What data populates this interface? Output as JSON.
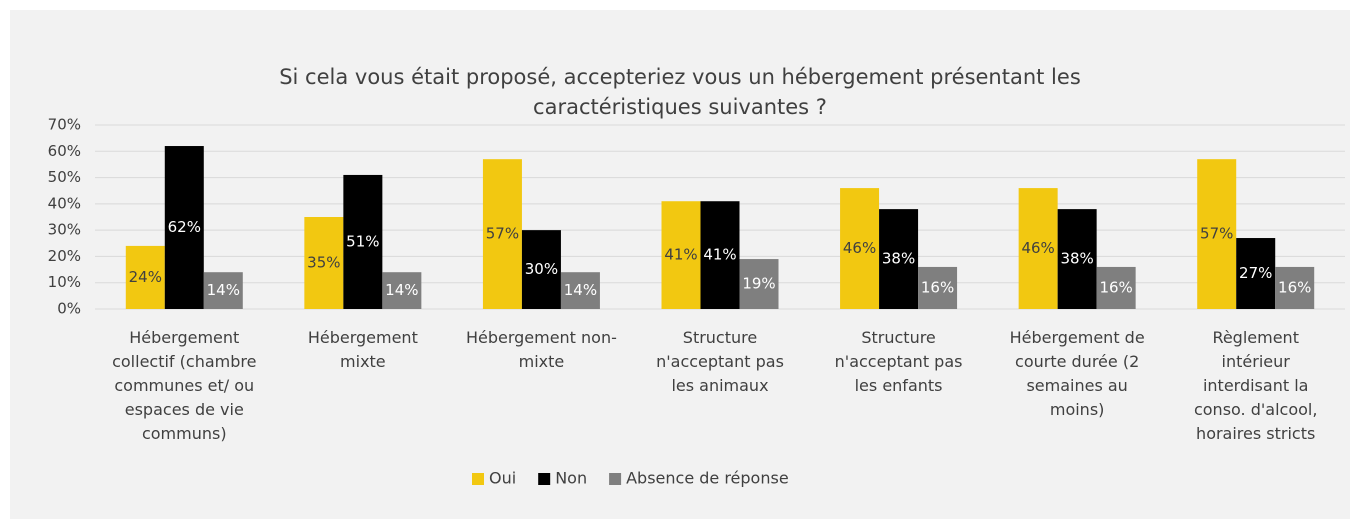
{
  "chart_data": {
    "type": "bar",
    "title": "Si cela vous était proposé, accepteriez vous un hébergement présentant les caractéristiques suivantes ?",
    "categories": [
      "Hébergement collectif (chambre communes et/ ou espaces de vie communs)",
      "Hébergement mixte",
      "Hébergement non-mixte",
      "Structure n'acceptant pas les animaux",
      "Structure n'acceptant pas les enfants",
      "Hébergement de courte durée (2 semaines au moins)",
      "Règlement intérieur interdisant la conso. d'alcool, horaires stricts"
    ],
    "series": [
      {
        "name": "Oui",
        "color": "#f2c811",
        "label_color": "#404040",
        "values": [
          24,
          35,
          57,
          41,
          46,
          46,
          57
        ],
        "value_labels": [
          "24%",
          "35%",
          "57%",
          "41%",
          "46%",
          "46%",
          "57%"
        ]
      },
      {
        "name": "Non",
        "color": "#000000",
        "label_color": "#ffffff",
        "values": [
          62,
          51,
          30,
          41,
          38,
          38,
          27
        ],
        "value_labels": [
          "62%",
          "51%",
          "30%",
          "41%",
          "38%",
          "38%",
          "27%"
        ]
      },
      {
        "name": "Absence de réponse",
        "color": "#7f7f7f",
        "label_color": "#ffffff",
        "values": [
          14,
          14,
          14,
          19,
          16,
          16,
          16
        ],
        "value_labels": [
          "14%",
          "14%",
          "14%",
          "19%",
          "16%",
          "16%",
          "16%"
        ]
      }
    ],
    "ylim": [
      0,
      70
    ],
    "yticks": [
      {
        "value": 0,
        "label": "0%"
      },
      {
        "value": 10,
        "label": "10%"
      },
      {
        "value": 20,
        "label": "20%"
      },
      {
        "value": 30,
        "label": "30%"
      },
      {
        "value": 40,
        "label": "40%"
      },
      {
        "value": 50,
        "label": "50%"
      },
      {
        "value": 60,
        "label": "60%"
      },
      {
        "value": 70,
        "label": "70%"
      }
    ],
    "grid": true,
    "legend": "bottom"
  }
}
